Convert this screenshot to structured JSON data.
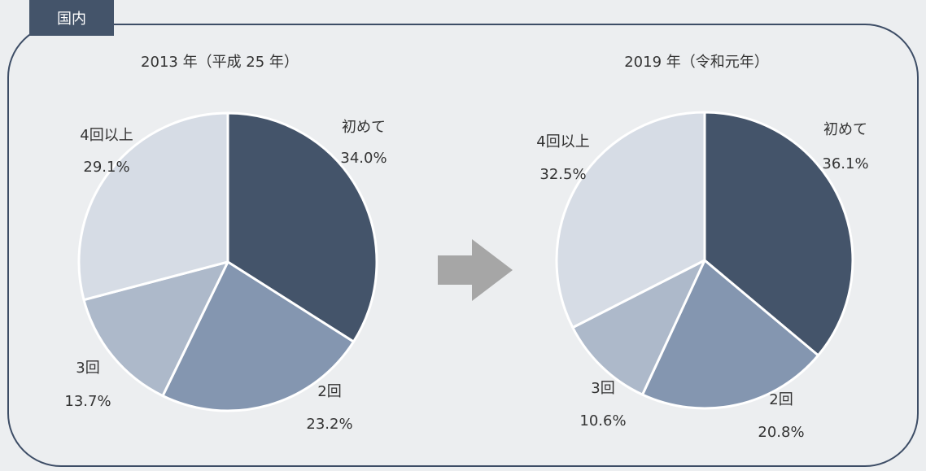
{
  "tag": "国内",
  "chart_data": [
    {
      "type": "pie",
      "title": "2013 年（平成 25 年）",
      "categories": [
        "初めて",
        "2回",
        "3回",
        "4回以上"
      ],
      "values": [
        34.0,
        23.2,
        13.7,
        29.1
      ],
      "value_labels": [
        "34.0%",
        "23.2%",
        "13.7%",
        "29.1%"
      ],
      "colors": [
        "#44546a",
        "#8496b0",
        "#adb9ca",
        "#d6dce5"
      ]
    },
    {
      "type": "pie",
      "title": "2019 年（令和元年）",
      "categories": [
        "初めて",
        "2回",
        "3回",
        "4回以上"
      ],
      "values": [
        36.1,
        20.8,
        10.6,
        32.5
      ],
      "value_labels": [
        "36.1%",
        "20.8%",
        "10.6%",
        "32.5%"
      ],
      "colors": [
        "#44546a",
        "#8496b0",
        "#adb9ca",
        "#d6dce5"
      ]
    }
  ]
}
